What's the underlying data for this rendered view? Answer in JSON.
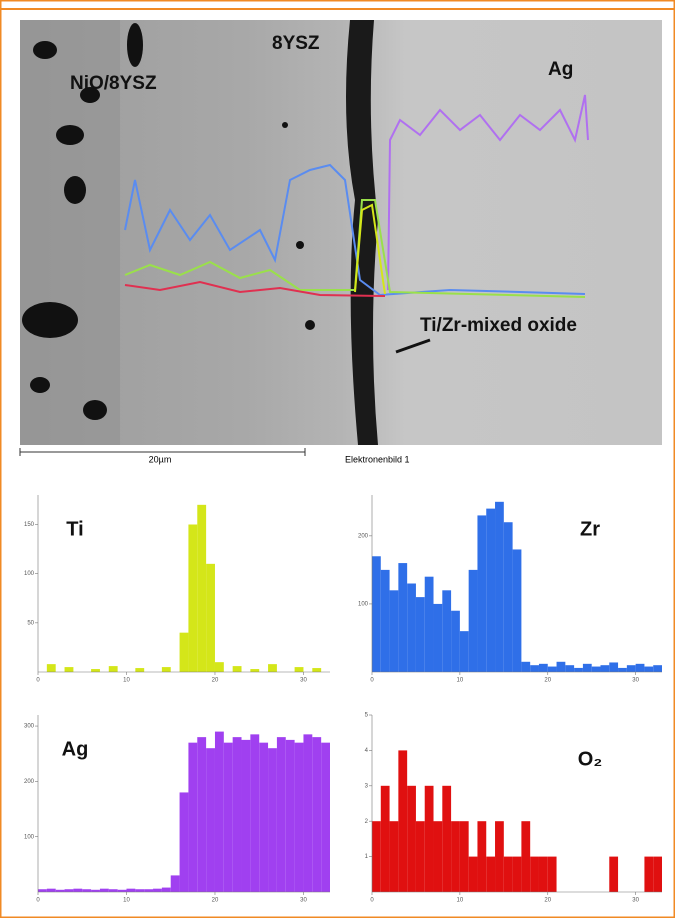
{
  "image": {
    "labels": [
      "NiO/8YSZ",
      "8YSZ",
      "Ag",
      "Ti/Zr-mixed oxide"
    ],
    "scale_bar": "20µm",
    "caption": "Elektronenbild 1"
  },
  "chart_data": [
    {
      "type": "bar",
      "title": "Ti",
      "color": "#d4e619",
      "x": [
        0,
        1,
        2,
        3,
        4,
        5,
        6,
        7,
        8,
        9,
        10,
        11,
        12,
        13,
        14,
        15,
        16,
        17,
        18,
        19,
        20,
        21,
        22,
        23,
        24,
        25,
        26,
        27,
        28,
        29,
        30,
        31,
        32
      ],
      "values": [
        0,
        8,
        0,
        5,
        0,
        0,
        3,
        0,
        6,
        0,
        0,
        4,
        0,
        0,
        5,
        0,
        40,
        150,
        170,
        110,
        10,
        0,
        6,
        0,
        3,
        0,
        8,
        0,
        0,
        5,
        0,
        4,
        0
      ],
      "xlim": [
        0,
        33
      ],
      "xticks": [
        0,
        10,
        20,
        30
      ],
      "ylim": [
        0,
        180
      ],
      "yticks": [
        50,
        100,
        150
      ]
    },
    {
      "type": "bar",
      "title": "Zr",
      "color": "#2f6fe8",
      "x": [
        0,
        1,
        2,
        3,
        4,
        5,
        6,
        7,
        8,
        9,
        10,
        11,
        12,
        13,
        14,
        15,
        16,
        17,
        18,
        19,
        20,
        21,
        22,
        23,
        24,
        25,
        26,
        27,
        28,
        29,
        30,
        31,
        32
      ],
      "values": [
        170,
        150,
        120,
        160,
        130,
        110,
        140,
        100,
        120,
        90,
        60,
        150,
        230,
        240,
        250,
        220,
        180,
        15,
        10,
        12,
        8,
        15,
        10,
        6,
        12,
        8,
        10,
        14,
        6,
        10,
        12,
        8,
        10
      ],
      "xlim": [
        0,
        33
      ],
      "xticks": [
        0,
        10,
        20,
        30
      ],
      "ylim": [
        0,
        260
      ],
      "yticks": [
        100,
        200
      ]
    },
    {
      "type": "bar",
      "title": "Ag",
      "color": "#a040f0",
      "x": [
        0,
        1,
        2,
        3,
        4,
        5,
        6,
        7,
        8,
        9,
        10,
        11,
        12,
        13,
        14,
        15,
        16,
        17,
        18,
        19,
        20,
        21,
        22,
        23,
        24,
        25,
        26,
        27,
        28,
        29,
        30,
        31,
        32
      ],
      "values": [
        5,
        6,
        4,
        5,
        6,
        5,
        4,
        6,
        5,
        4,
        6,
        5,
        5,
        6,
        8,
        30,
        180,
        270,
        280,
        260,
        290,
        270,
        280,
        275,
        285,
        270,
        260,
        280,
        275,
        270,
        285,
        280,
        270
      ],
      "xlim": [
        0,
        33
      ],
      "xticks": [
        0,
        10,
        20,
        30
      ],
      "ylim": [
        0,
        320
      ],
      "yticks": [
        100,
        200,
        300
      ]
    },
    {
      "type": "bar",
      "title": "O₂",
      "color": "#e01010",
      "x": [
        0,
        1,
        2,
        3,
        4,
        5,
        6,
        7,
        8,
        9,
        10,
        11,
        12,
        13,
        14,
        15,
        16,
        17,
        18,
        19,
        20,
        21,
        22,
        23,
        24,
        25,
        26,
        27,
        28,
        29,
        30,
        31,
        32
      ],
      "values": [
        2,
        3,
        2,
        4,
        3,
        2,
        3,
        2,
        3,
        2,
        2,
        1,
        2,
        1,
        2,
        1,
        1,
        2,
        1,
        1,
        1,
        0,
        0,
        0,
        0,
        0,
        0,
        1,
        0,
        0,
        0,
        1,
        1
      ],
      "xlim": [
        0,
        33
      ],
      "xticks": [
        0,
        10,
        20,
        30
      ],
      "ylim": [
        0,
        5
      ],
      "yticks": [
        1,
        2,
        3,
        4,
        5
      ]
    }
  ]
}
